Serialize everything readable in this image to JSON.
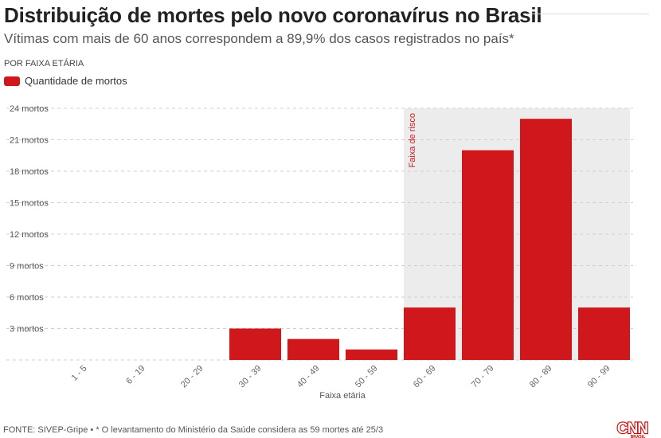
{
  "header": {
    "title": "Distribuição de mortes pelo novo coronavírus no Brasil",
    "subtitle": "Vítimas com mais de 60 anos correspondem a 89,9% dos casos registrados no país*",
    "section_label": "POR FAIXA ETÁRIA"
  },
  "legend": {
    "label": "Quantidade de mortos",
    "color": "#d0171b"
  },
  "chart_data": {
    "type": "bar",
    "categories": [
      "1 - 5",
      "6 - 19",
      "20 - 29",
      "30 - 39",
      "40 - 49",
      "50 - 59",
      "60 - 69",
      "70 - 79",
      "80 - 89",
      "90 - 99"
    ],
    "series": [
      {
        "name": "Quantidade de mortos",
        "values": [
          0,
          0,
          0,
          3,
          2,
          1,
          5,
          20,
          23,
          5
        ]
      }
    ],
    "y_ticks": [
      3,
      6,
      9,
      12,
      15,
      18,
      21,
      24
    ],
    "y_tick_labels": [
      "3 mortos",
      "6 mortos",
      "9 mortos",
      "12 mortos",
      "15 mortos",
      "18 mortos",
      "21 mortos",
      "24 mortos"
    ],
    "ylim": [
      0,
      24
    ],
    "xlabel": "Faixa etária",
    "ylabel": "",
    "highlight": {
      "label": "Faixa de risco",
      "from_category": "60 - 69",
      "to_category": "90 - 99",
      "color": "#ececec"
    },
    "bar_color": "#d0171b",
    "grid": true
  },
  "footer": {
    "source": "FONTE: SIVEP-Gripe • * O levantamento do Ministério da Saúde considera as 59 mortes até 25/3"
  },
  "logo": {
    "text": "CNN",
    "subtext": "BRASIL",
    "color": "#cc0000"
  }
}
